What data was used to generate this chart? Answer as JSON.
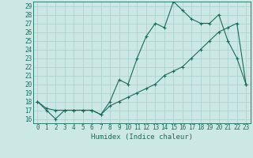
{
  "title": "",
  "xlabel": "Humidex (Indice chaleur)",
  "bg_color": "#cce8e4",
  "grid_color": "#aacfcc",
  "line_color": "#1a6b5a",
  "xlim": [
    -0.5,
    23.5
  ],
  "ylim": [
    15.5,
    29.5
  ],
  "xticks": [
    0,
    1,
    2,
    3,
    4,
    5,
    6,
    7,
    8,
    9,
    10,
    11,
    12,
    13,
    14,
    15,
    16,
    17,
    18,
    19,
    20,
    21,
    22,
    23
  ],
  "yticks": [
    16,
    17,
    18,
    19,
    20,
    21,
    22,
    23,
    24,
    25,
    26,
    27,
    28,
    29
  ],
  "line1_x": [
    0,
    1,
    2,
    3,
    4,
    5,
    6,
    7,
    8,
    9,
    10,
    11,
    12,
    13,
    14,
    15,
    16,
    17,
    18,
    19,
    20,
    21,
    22,
    23
  ],
  "line1_y": [
    18,
    17,
    16,
    17,
    17,
    17,
    17,
    16.5,
    18,
    20.5,
    20,
    23,
    25.5,
    27,
    26.5,
    29.5,
    28.5,
    27.5,
    27,
    27,
    28,
    25,
    23,
    20
  ],
  "line2_x": [
    0,
    1,
    2,
    3,
    4,
    5,
    6,
    7,
    8,
    9,
    10,
    11,
    12,
    13,
    14,
    15,
    16,
    17,
    18,
    19,
    20,
    21,
    22,
    23
  ],
  "line2_y": [
    18,
    17.2,
    17,
    17,
    17,
    17,
    17,
    16.5,
    17.5,
    18,
    18.5,
    19,
    19.5,
    20,
    21,
    21.5,
    22,
    23,
    24,
    25,
    26,
    26.5,
    27,
    20
  ],
  "tick_fontsize": 5.5,
  "xlabel_fontsize": 6.5
}
